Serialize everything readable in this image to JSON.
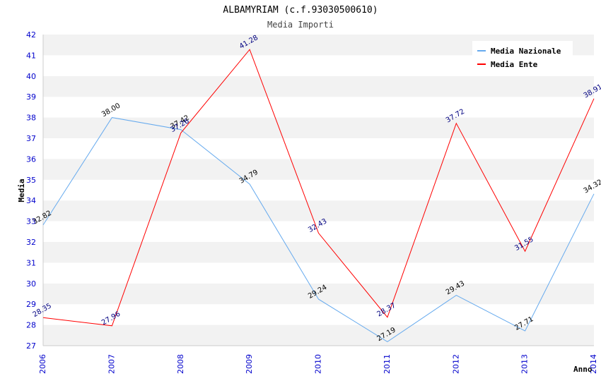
{
  "chart_data": {
    "type": "line",
    "title": "ALBAMYRIAM (c.f.93030500610)",
    "subtitle": "Media Importi",
    "xlabel": "Anno",
    "ylabel": "Media",
    "categories": [
      "2006",
      "2007",
      "2008",
      "2009",
      "2010",
      "2011",
      "2012",
      "2013",
      "2014"
    ],
    "ylim": [
      27,
      42
    ],
    "yticks": [
      "27",
      "28",
      "29",
      "30",
      "31",
      "32",
      "33",
      "34",
      "35",
      "36",
      "37",
      "38",
      "39",
      "40",
      "41",
      "42"
    ],
    "grid": "horizontal bands",
    "legend_position": "top-right",
    "series": [
      {
        "name": "Media Nazionale",
        "color": "#66aaee",
        "label_color": "#000000",
        "values": [
          32.82,
          38.0,
          37.42,
          34.79,
          29.24,
          27.19,
          29.43,
          27.71,
          34.32
        ],
        "labels": [
          "32.82",
          "38.00",
          "37.42",
          "34.79",
          "29.24",
          "27.19",
          "29.43",
          "27.71",
          "34.32"
        ]
      },
      {
        "name": "Media Ente",
        "color": "#ff0000",
        "label_color": "#000080",
        "values": [
          28.35,
          27.96,
          37.26,
          41.28,
          32.43,
          28.37,
          37.72,
          31.55,
          38.91
        ],
        "labels": [
          "28.35",
          "27.96",
          "37.26",
          "41.28",
          "32.43",
          "28.37",
          "37.72",
          "31.55",
          "38.91"
        ]
      }
    ]
  }
}
